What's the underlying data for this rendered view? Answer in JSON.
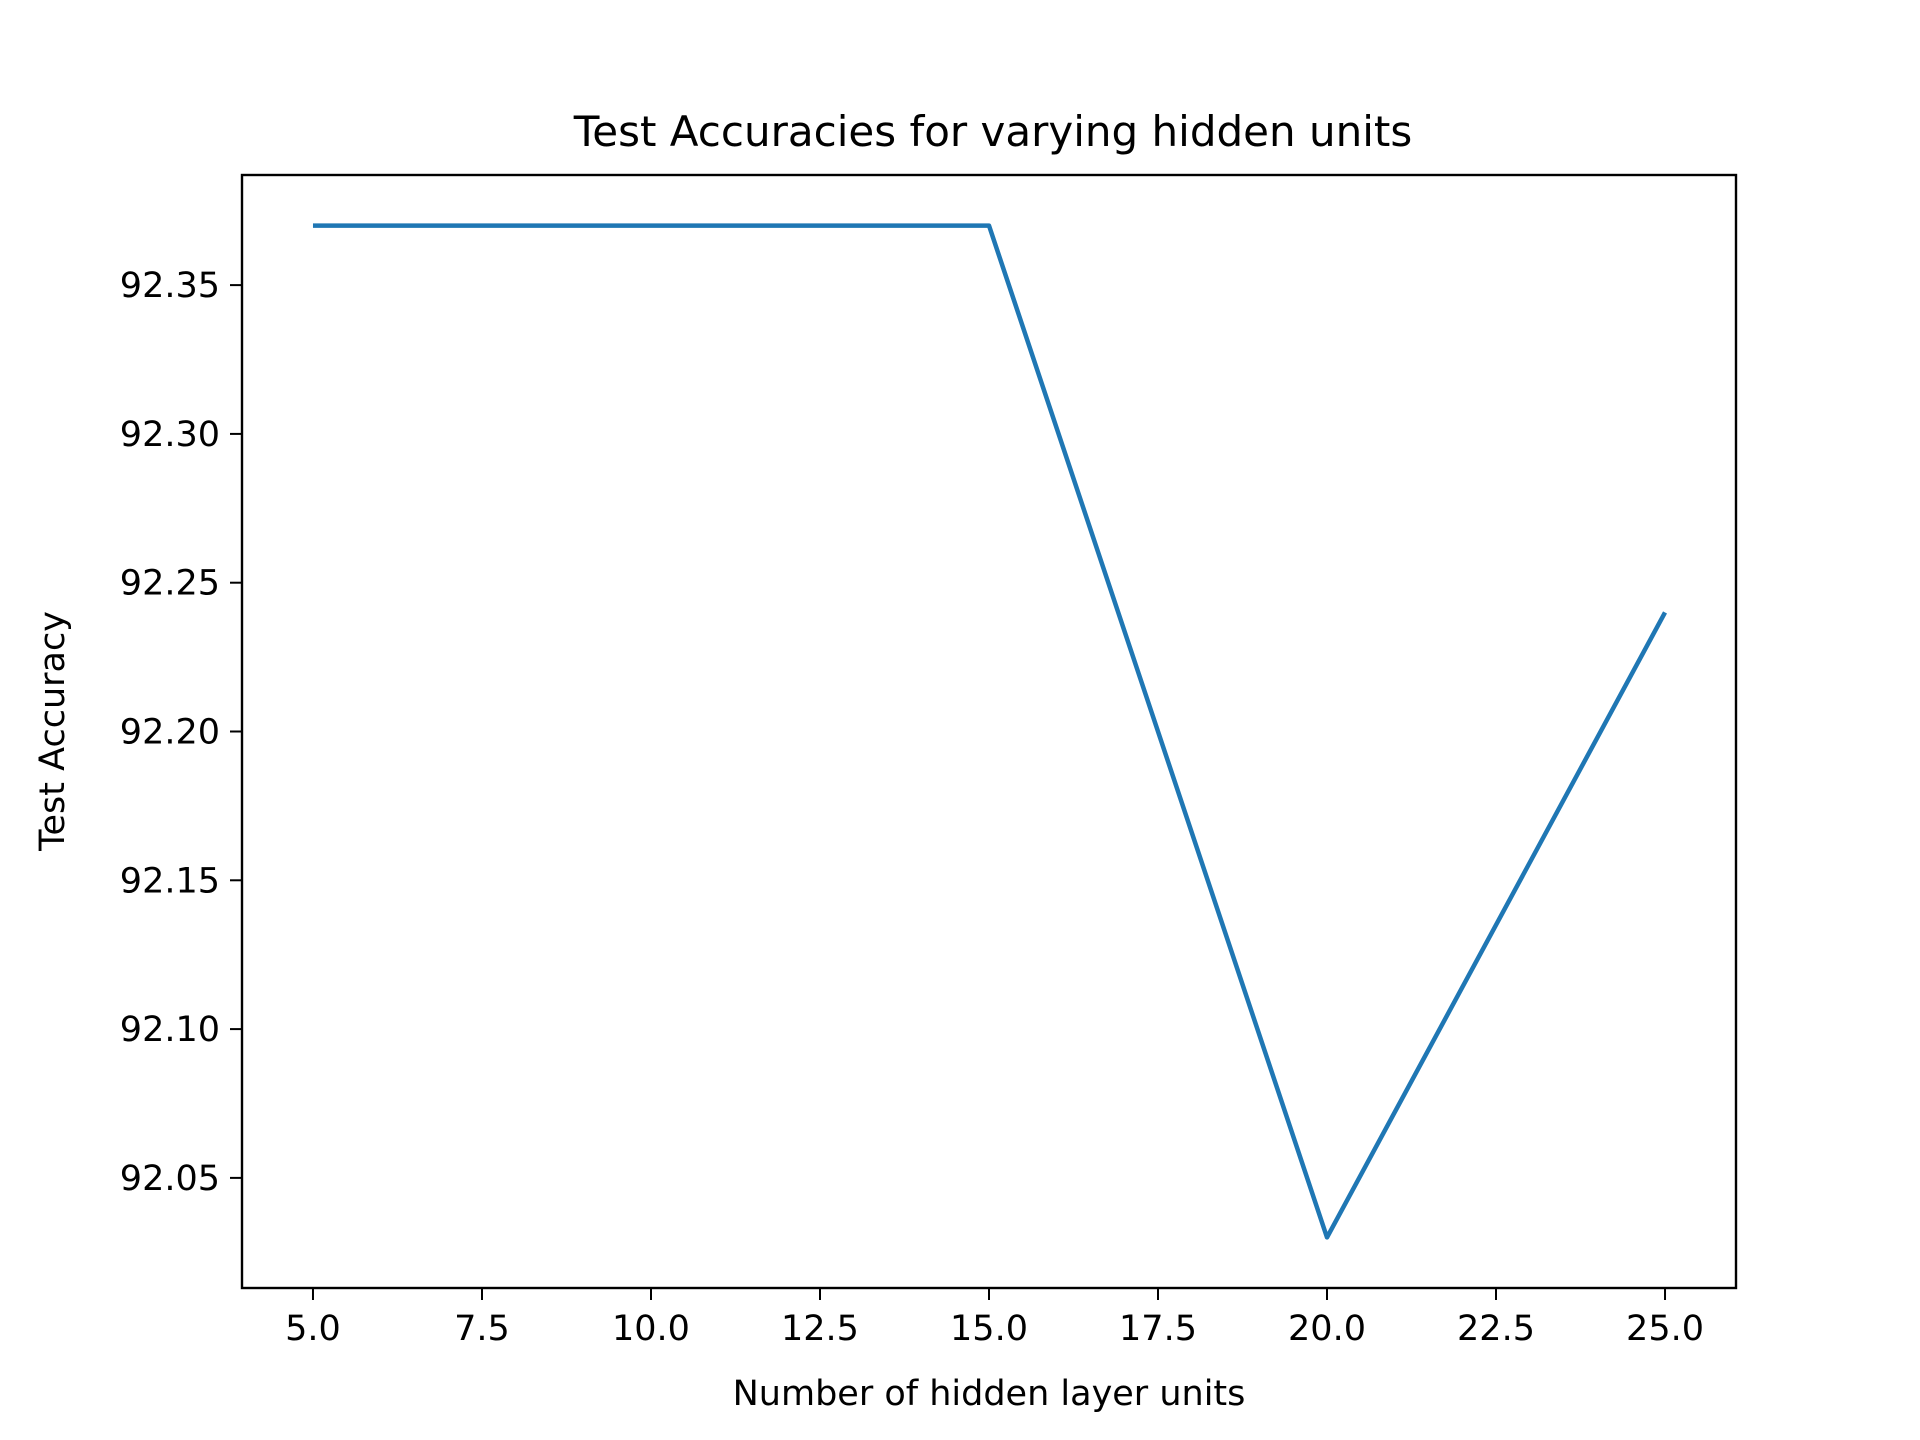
{
  "chart_data": {
    "type": "line",
    "title": "Test Accuracies for varying hidden units",
    "xlabel": "Number of hidden layer units",
    "ylabel": "Test Accuracy",
    "xlim": [
      3.95,
      26.05
    ],
    "ylim": [
      92.013,
      92.387
    ],
    "x_ticks": [
      5.0,
      7.5,
      10.0,
      12.5,
      15.0,
      17.5,
      20.0,
      22.5,
      25.0
    ],
    "x_tick_labels": [
      "5.0",
      "7.5",
      "10.0",
      "12.5",
      "15.0",
      "17.5",
      "20.0",
      "22.5",
      "25.0"
    ],
    "y_ticks": [
      92.05,
      92.1,
      92.15,
      92.2,
      92.25,
      92.3,
      92.35
    ],
    "y_tick_labels": [
      "92.05",
      "92.10",
      "92.15",
      "92.20",
      "92.25",
      "92.30",
      "92.35"
    ],
    "grid": false,
    "series": [
      {
        "x": [
          5,
          10,
          15,
          20,
          25
        ],
        "y": [
          92.37,
          92.37,
          92.37,
          92.03,
          92.24
        ],
        "color": "#1f77b4"
      }
    ]
  }
}
